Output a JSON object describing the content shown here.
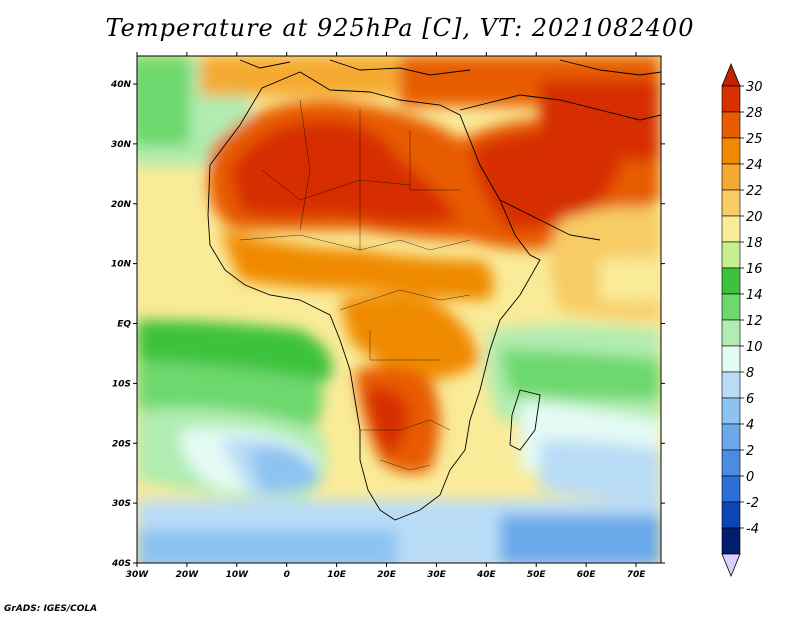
{
  "title": "Temperature at 925hPa [C], VT: 2021082400",
  "credit": "GrADS: IGES/COLA",
  "axes": {
    "x_ticks": [
      "30W",
      "20W",
      "10W",
      "0",
      "10E",
      "20E",
      "30E",
      "40E",
      "50E",
      "60E",
      "70E"
    ],
    "y_ticks": [
      "40N",
      "30N",
      "20N",
      "10N",
      "EQ",
      "10S",
      "20S",
      "30S",
      "40S"
    ]
  },
  "colorbar": {
    "levels": [
      "30",
      "28",
      "25",
      "24",
      "22",
      "20",
      "18",
      "16",
      "14",
      "12",
      "10",
      "8",
      "6",
      "4",
      "2",
      "0",
      "-2",
      "-4"
    ],
    "colors": [
      "#d62f00",
      "#e85c00",
      "#f08a00",
      "#f5aa33",
      "#f7cc66",
      "#faeb99",
      "#c7ef90",
      "#3cc23c",
      "#6dd86d",
      "#b1ecb1",
      "#e4fbf4",
      "#b9dcf7",
      "#8cc3f1",
      "#6ba9ea",
      "#4a8ce0",
      "#2b6fd6",
      "#0e45b5",
      "#001e6b"
    ],
    "over_color": "#c42300",
    "under_color": "#d9d0ff"
  }
}
